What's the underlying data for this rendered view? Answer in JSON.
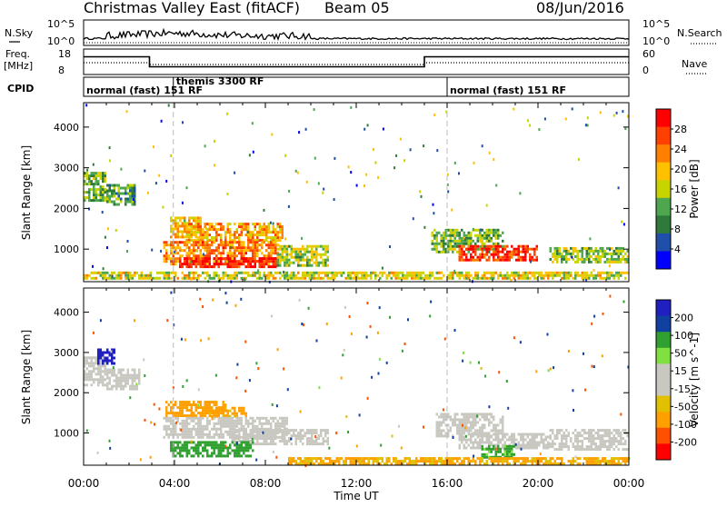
{
  "header": {
    "title": "Christmas Valley East (fitACF)",
    "beam": "Beam 05",
    "date": "08/Jun/2016"
  },
  "strip_labels": {
    "nsky": "N.Sky",
    "nsearch": "N.Search",
    "freq": "Freq.",
    "freq_unit": "[MHz]",
    "nave": "Nave",
    "cpid": "CPID"
  },
  "strip_ticks": {
    "noise_top": "10^5",
    "noise_bottom": "10^0",
    "freq_top": "18",
    "freq_bottom": "8",
    "nave_top": "60",
    "nave_bottom": "0"
  },
  "cpid_segments": [
    {
      "label": "normal (fast) 151 RF",
      "start_hour": 0
    },
    {
      "label": "themis 3300 RF",
      "start_hour": 3.95
    },
    {
      "label": "normal (fast) 151 RF",
      "start_hour": 16
    }
  ],
  "colors": {
    "power_scale": [
      "#0000ff",
      "#1f4fa8",
      "#2f7a3a",
      "#4ea64e",
      "#c8d400",
      "#ffc000",
      "#ff8000",
      "#ff4000",
      "#ff0000"
    ],
    "velocity_scale": [
      "#ff0000",
      "#ff5000",
      "#ffa000",
      "#e0c000",
      "#c8c8c0",
      "#c8c8c0",
      "#80e040",
      "#30a030",
      "#1040a0",
      "#2020c0"
    ]
  },
  "chart_data": [
    {
      "type": "heatmap",
      "ylabel": "Slant Range [km]",
      "xlabel": "Time UT",
      "x_ticks": [
        "00:00",
        "04:00",
        "08:00",
        "12:00",
        "16:00",
        "20:00",
        "00:00"
      ],
      "y_ticks": [
        "1000",
        "2000",
        "3000",
        "4000"
      ],
      "xlim": [
        0,
        24
      ],
      "ylim": [
        200,
        4600
      ],
      "colorbar": {
        "label": "Power [dB]",
        "ticks": [
          "4",
          "8",
          "12",
          "16",
          "20",
          "24",
          "28"
        ],
        "range": [
          0,
          30
        ]
      },
      "regions": [
        {
          "t0": 0,
          "t1": 1.0,
          "r0": 2200,
          "r1": 2900,
          "value": 12
        },
        {
          "t0": 1.0,
          "t1": 2.3,
          "r0": 2100,
          "r1": 2600,
          "value": 10
        },
        {
          "t0": 3.8,
          "t1": 5.2,
          "r0": 1300,
          "r1": 1800,
          "value": 18
        },
        {
          "t0": 4.5,
          "t1": 8.8,
          "r0": 1200,
          "r1": 1650,
          "value": 20
        },
        {
          "t0": 3.5,
          "t1": 8.6,
          "r0": 600,
          "r1": 1200,
          "value": 22
        },
        {
          "t0": 4.2,
          "t1": 8.5,
          "r0": 550,
          "r1": 800,
          "value": 28
        },
        {
          "t0": 8.5,
          "t1": 10.8,
          "r0": 600,
          "r1": 1100,
          "value": 14
        },
        {
          "t0": 15.3,
          "t1": 18.5,
          "r0": 900,
          "r1": 1500,
          "value": 12
        },
        {
          "t0": 16.5,
          "t1": 20.0,
          "r0": 700,
          "r1": 1100,
          "value": 26
        },
        {
          "t0": 20.5,
          "t1": 24.0,
          "r0": 650,
          "r1": 1050,
          "value": 14
        },
        {
          "t0": 0,
          "t1": 24.0,
          "r0": 250,
          "r1": 450,
          "value": 16
        }
      ]
    },
    {
      "type": "heatmap",
      "ylabel": "Slant Range [km]",
      "xlabel": "Time UT",
      "x_ticks": [
        "00:00",
        "04:00",
        "08:00",
        "12:00",
        "16:00",
        "20:00",
        "00:00"
      ],
      "y_ticks": [
        "1000",
        "2000",
        "3000",
        "4000"
      ],
      "xlim": [
        0,
        24
      ],
      "ylim": [
        200,
        4600
      ],
      "colorbar": {
        "label": "Velocity [m s^-1]",
        "ticks": [
          "200",
          "100",
          "50",
          "15",
          "-15",
          "-50",
          "-100",
          "-200"
        ],
        "range": [
          -250,
          250
        ]
      },
      "regions": [
        {
          "t0": 0,
          "t1": 1.0,
          "r0": 2200,
          "r1": 2900,
          "value": 0
        },
        {
          "t0": 0.6,
          "t1": 1.4,
          "r0": 2700,
          "r1": 3100,
          "value": 180
        },
        {
          "t0": 1.0,
          "t1": 2.5,
          "r0": 2100,
          "r1": 2600,
          "value": 0
        },
        {
          "t0": 3.6,
          "t1": 6.2,
          "r0": 1400,
          "r1": 1800,
          "value": -60
        },
        {
          "t0": 5.5,
          "t1": 7.2,
          "r0": 1400,
          "r1": 1650,
          "value": -40
        },
        {
          "t0": 3.5,
          "t1": 9.0,
          "r0": 900,
          "r1": 1400,
          "value": 0
        },
        {
          "t0": 6.5,
          "t1": 10.8,
          "r0": 700,
          "r1": 1100,
          "value": 0
        },
        {
          "t0": 3.8,
          "t1": 7.5,
          "r0": 400,
          "r1": 800,
          "value": 45
        },
        {
          "t0": 15.5,
          "t1": 18.5,
          "r0": 900,
          "r1": 1500,
          "value": 0
        },
        {
          "t0": 16.5,
          "t1": 20.5,
          "r0": 600,
          "r1": 1000,
          "value": 0
        },
        {
          "t0": 17.5,
          "t1": 19.0,
          "r0": 400,
          "r1": 700,
          "value": 40
        },
        {
          "t0": 20.5,
          "t1": 24.0,
          "r0": 600,
          "r1": 1100,
          "value": 0
        },
        {
          "t0": 9.0,
          "t1": 24.0,
          "r0": 250,
          "r1": 400,
          "value": -35
        }
      ]
    }
  ]
}
